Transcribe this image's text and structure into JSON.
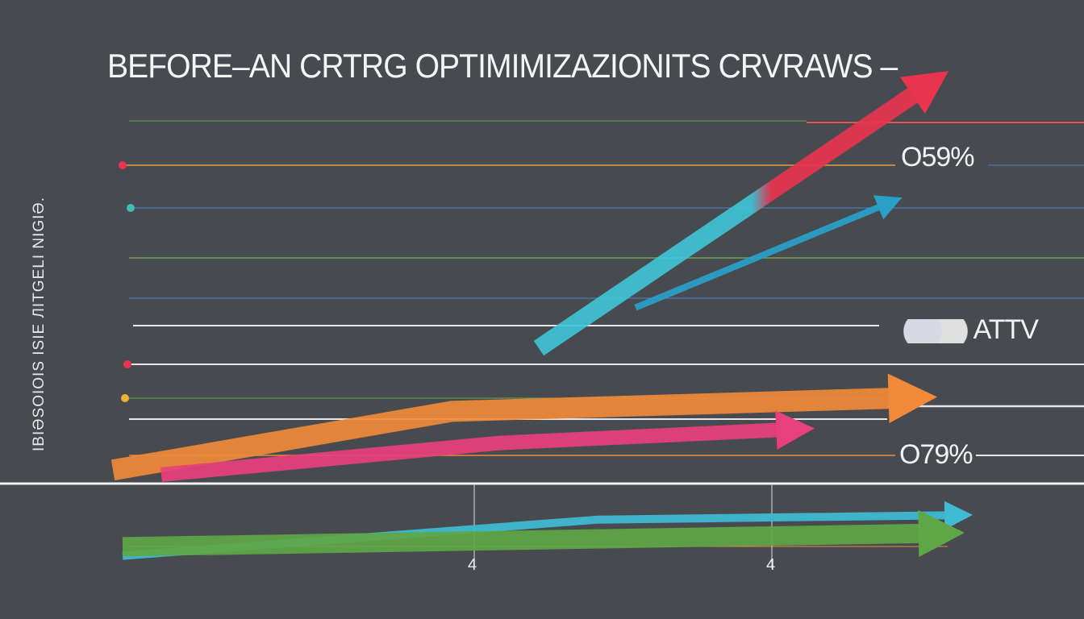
{
  "chart_data": {
    "type": "line",
    "title": "BEFORE–AN CRTRG OPTIMIMIZAZIONITS CRVRAWS –",
    "ylabel": "IBIƏSOIOIS ISIE ЛITGELI NIGIƏ.",
    "xlabel": "",
    "grid": true,
    "legend": "none",
    "x_tick_labels": [
      "4",
      "4"
    ],
    "annotations": [
      "O59%",
      "ATTV",
      "O79%"
    ],
    "background": "#474b50",
    "series": [
      {
        "color": "#e8344f",
        "color_end": "#3fc4d6",
        "points": [
          [
            0.54,
            0.3
          ],
          [
            0.94,
            0.88
          ]
        ]
      },
      {
        "color": "#2a9fc9",
        "points": [
          [
            0.64,
            0.39
          ],
          [
            0.9,
            0.62
          ]
        ]
      },
      {
        "color": "#f08a3a",
        "points": [
          [
            0.1,
            0.03
          ],
          [
            0.45,
            0.16
          ],
          [
            0.92,
            0.19
          ]
        ]
      },
      {
        "color": "#e8407a",
        "points": [
          [
            0.15,
            0.02
          ],
          [
            0.5,
            0.09
          ],
          [
            0.8,
            0.12
          ]
        ]
      },
      {
        "color": "#3fbcd4",
        "points": [
          [
            0.11,
            -0.16
          ],
          [
            0.6,
            -0.08
          ],
          [
            0.97,
            -0.07
          ]
        ]
      },
      {
        "color": "#5fa646",
        "points": [
          [
            0.11,
            -0.14
          ],
          [
            0.95,
            -0.11
          ]
        ]
      }
    ]
  }
}
